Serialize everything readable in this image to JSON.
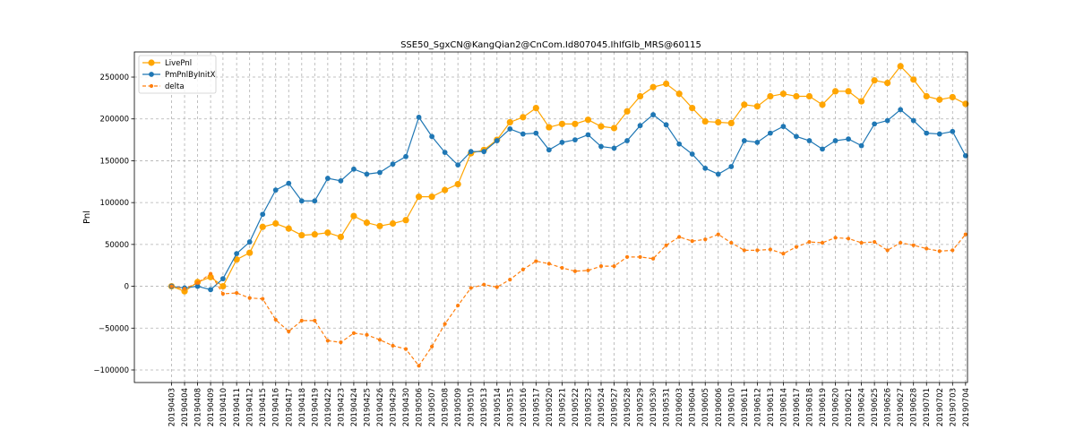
{
  "chart_data": {
    "type": "line",
    "title": "SSE50_SgxCN@KangQian2@CnCom.Id807045.IhIfGlb_MRS@60115",
    "xlabel": "",
    "ylabel": "Pnl",
    "ylim": [
      -115000,
      280000
    ],
    "yticks": [
      -100000,
      -50000,
      0,
      50000,
      100000,
      150000,
      200000,
      250000
    ],
    "ytick_labels": [
      "−100000",
      "−50000",
      "0",
      "50000",
      "100000",
      "150000",
      "200000",
      "250000"
    ],
    "grid": true,
    "legend_position": "top-left",
    "x": [
      "20190403",
      "20190404",
      "20190408",
      "20190409",
      "20190410",
      "20190411",
      "20190412",
      "20190415",
      "20190416",
      "20190417",
      "20190418",
      "20190419",
      "20190422",
      "20190423",
      "20190424",
      "20190425",
      "20190426",
      "20190429",
      "20190430",
      "20190506",
      "20190507",
      "20190508",
      "20190509",
      "20190510",
      "20190513",
      "20190514",
      "20190515",
      "20190516",
      "20190517",
      "20190520",
      "20190521",
      "20190522",
      "20190523",
      "20190524",
      "20190527",
      "20190528",
      "20190529",
      "20190530",
      "20190531",
      "20190603",
      "20190604",
      "20190605",
      "20190606",
      "20190610",
      "20190611",
      "20190612",
      "20190613",
      "20190614",
      "20190617",
      "20190618",
      "20190619",
      "20190620",
      "20190621",
      "20190624",
      "20190625",
      "20190626",
      "20190627",
      "20190628",
      "20190701",
      "20190702",
      "20190703",
      "20190704"
    ],
    "x_positions": [
      0,
      1,
      2,
      3,
      3.95,
      5,
      6,
      7,
      8,
      9,
      10,
      11,
      12,
      13,
      14,
      15,
      16,
      17,
      18,
      19,
      20,
      21,
      22,
      23,
      24,
      25,
      26,
      27,
      28,
      29,
      30,
      31,
      32,
      33,
      34,
      35,
      36,
      37,
      38,
      39,
      40,
      41,
      42,
      43,
      44,
      45,
      46,
      47,
      48,
      49,
      50,
      51,
      52,
      53,
      54,
      55,
      56,
      57,
      58,
      59,
      60,
      61
    ],
    "series": [
      {
        "name": "LivePnl",
        "color": "#ffa500",
        "style": "solid",
        "marker_size": 3.6,
        "values": [
          0,
          -6000,
          5000,
          11000,
          0,
          32000,
          40000,
          71000,
          75000,
          69000,
          61000,
          62000,
          64000,
          59000,
          84000,
          76000,
          72000,
          75000,
          79000,
          107000,
          107000,
          115000,
          122000,
          159000,
          163000,
          175000,
          196000,
          202000,
          213000,
          190000,
          194000,
          194000,
          199000,
          191000,
          189000,
          209000,
          227000,
          238000,
          242000,
          230000,
          213000,
          197000,
          196000,
          195000,
          217000,
          215000,
          227000,
          230000,
          227000,
          227000,
          217000,
          233000,
          233000,
          221000,
          246000,
          243000,
          263000,
          247000,
          227000,
          223000,
          226000,
          218000
        ]
      },
      {
        "name": "PmPnlByInitX",
        "color": "#1f77b4",
        "style": "solid",
        "marker_size": 2.9,
        "values": [
          0,
          -2000,
          0,
          -4000,
          9000,
          39000,
          53000,
          86000,
          115000,
          123000,
          102000,
          102000,
          129000,
          126000,
          140000,
          134000,
          136000,
          146000,
          155000,
          202000,
          179000,
          160000,
          145000,
          161000,
          161000,
          174000,
          188000,
          182000,
          183000,
          163000,
          172000,
          175000,
          181000,
          167000,
          165000,
          174000,
          192000,
          205000,
          193000,
          170000,
          158000,
          141000,
          134000,
          143000,
          174000,
          172000,
          183000,
          191000,
          179000,
          174000,
          164000,
          174000,
          176000,
          168000,
          194000,
          198000,
          211000,
          198000,
          183000,
          182000,
          185000,
          156000
        ]
      },
      {
        "name": "delta",
        "color": "#ff7f0e",
        "style": "dashed",
        "marker_size": 2.1,
        "values": [
          0,
          -3000,
          4000,
          15000,
          -9000,
          -8000,
          -14000,
          -15000,
          -40000,
          -54000,
          -41000,
          -41000,
          -65000,
          -67000,
          -56000,
          -58000,
          -64000,
          -71000,
          -75000,
          -95000,
          -72000,
          -45000,
          -23000,
          -2000,
          2000,
          -1000,
          8000,
          20000,
          30000,
          27000,
          22000,
          18000,
          19000,
          24000,
          24000,
          35000,
          35000,
          33000,
          49000,
          59000,
          54000,
          56000,
          62000,
          52000,
          43000,
          43000,
          44000,
          39000,
          47000,
          53000,
          52000,
          58000,
          57000,
          52000,
          53000,
          43000,
          52000,
          49000,
          45000,
          42000,
          43000,
          62000
        ]
      }
    ]
  }
}
